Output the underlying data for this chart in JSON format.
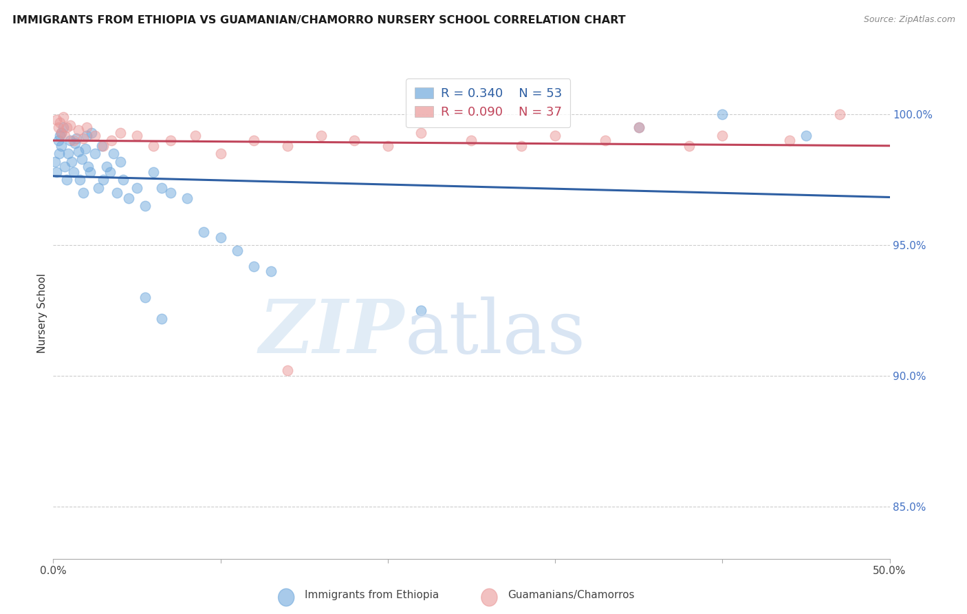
{
  "title": "IMMIGRANTS FROM ETHIOPIA VS GUAMANIAN/CHAMORRO NURSERY SCHOOL CORRELATION CHART",
  "source": "Source: ZipAtlas.com",
  "ylabel": "Nursery School",
  "y_tick_labels": [
    "85.0%",
    "90.0%",
    "95.0%",
    "100.0%"
  ],
  "y_tick_values": [
    85.0,
    90.0,
    95.0,
    100.0
  ],
  "x_range": [
    0.0,
    50.0
  ],
  "y_range": [
    83.0,
    101.8
  ],
  "legend_blue_r": "R = 0.340",
  "legend_blue_n": "N = 53",
  "legend_pink_r": "R = 0.090",
  "legend_pink_n": "N = 37",
  "legend_blue_label": "Immigrants from Ethiopia",
  "legend_pink_label": "Guamanians/Chamorros",
  "blue_color": "#6fa8dc",
  "pink_color": "#ea9999",
  "trendline_blue": "#2e5fa3",
  "trendline_pink": "#c0445a",
  "blue_scatter_x": [
    0.1,
    0.2,
    0.3,
    0.35,
    0.4,
    0.5,
    0.5,
    0.6,
    0.7,
    0.8,
    0.9,
    1.0,
    1.1,
    1.2,
    1.3,
    1.4,
    1.5,
    1.6,
    1.7,
    1.8,
    1.9,
    2.0,
    2.1,
    2.2,
    2.3,
    2.5,
    2.7,
    2.9,
    3.0,
    3.2,
    3.4,
    3.6,
    3.8,
    4.0,
    4.2,
    4.5,
    5.0,
    5.5,
    6.0,
    6.5,
    7.0,
    8.0,
    9.0,
    10.0,
    11.0,
    12.0,
    13.0,
    35.0,
    40.0,
    45.0,
    22.0,
    6.5,
    5.5
  ],
  "blue_scatter_y": [
    98.2,
    97.8,
    99.0,
    98.5,
    99.2,
    99.3,
    98.8,
    99.5,
    98.0,
    97.5,
    98.5,
    99.0,
    98.2,
    97.8,
    98.9,
    99.1,
    98.6,
    97.5,
    98.3,
    97.0,
    98.7,
    99.2,
    98.0,
    97.8,
    99.3,
    98.5,
    97.2,
    98.8,
    97.5,
    98.0,
    97.8,
    98.5,
    97.0,
    98.2,
    97.5,
    96.8,
    97.2,
    96.5,
    97.8,
    97.2,
    97.0,
    96.8,
    95.5,
    95.3,
    94.8,
    94.2,
    94.0,
    99.5,
    100.0,
    99.2,
    92.5,
    92.2,
    93.0
  ],
  "pink_scatter_x": [
    0.2,
    0.3,
    0.4,
    0.5,
    0.6,
    0.7,
    0.8,
    1.0,
    1.2,
    1.5,
    1.8,
    2.0,
    2.5,
    3.0,
    3.5,
    4.0,
    5.0,
    6.0,
    7.0,
    8.5,
    10.0,
    12.0,
    14.0,
    16.0,
    18.0,
    20.0,
    22.0,
    25.0,
    28.0,
    30.0,
    33.0,
    35.0,
    38.0,
    40.0,
    44.0,
    47.0,
    14.0
  ],
  "pink_scatter_y": [
    99.8,
    99.5,
    99.7,
    99.3,
    99.9,
    99.2,
    99.5,
    99.6,
    99.0,
    99.4,
    99.1,
    99.5,
    99.2,
    98.8,
    99.0,
    99.3,
    99.2,
    98.8,
    99.0,
    99.2,
    98.5,
    99.0,
    98.8,
    99.2,
    99.0,
    98.8,
    99.3,
    99.0,
    98.8,
    99.2,
    99.0,
    99.5,
    98.8,
    99.2,
    99.0,
    100.0,
    90.2
  ]
}
